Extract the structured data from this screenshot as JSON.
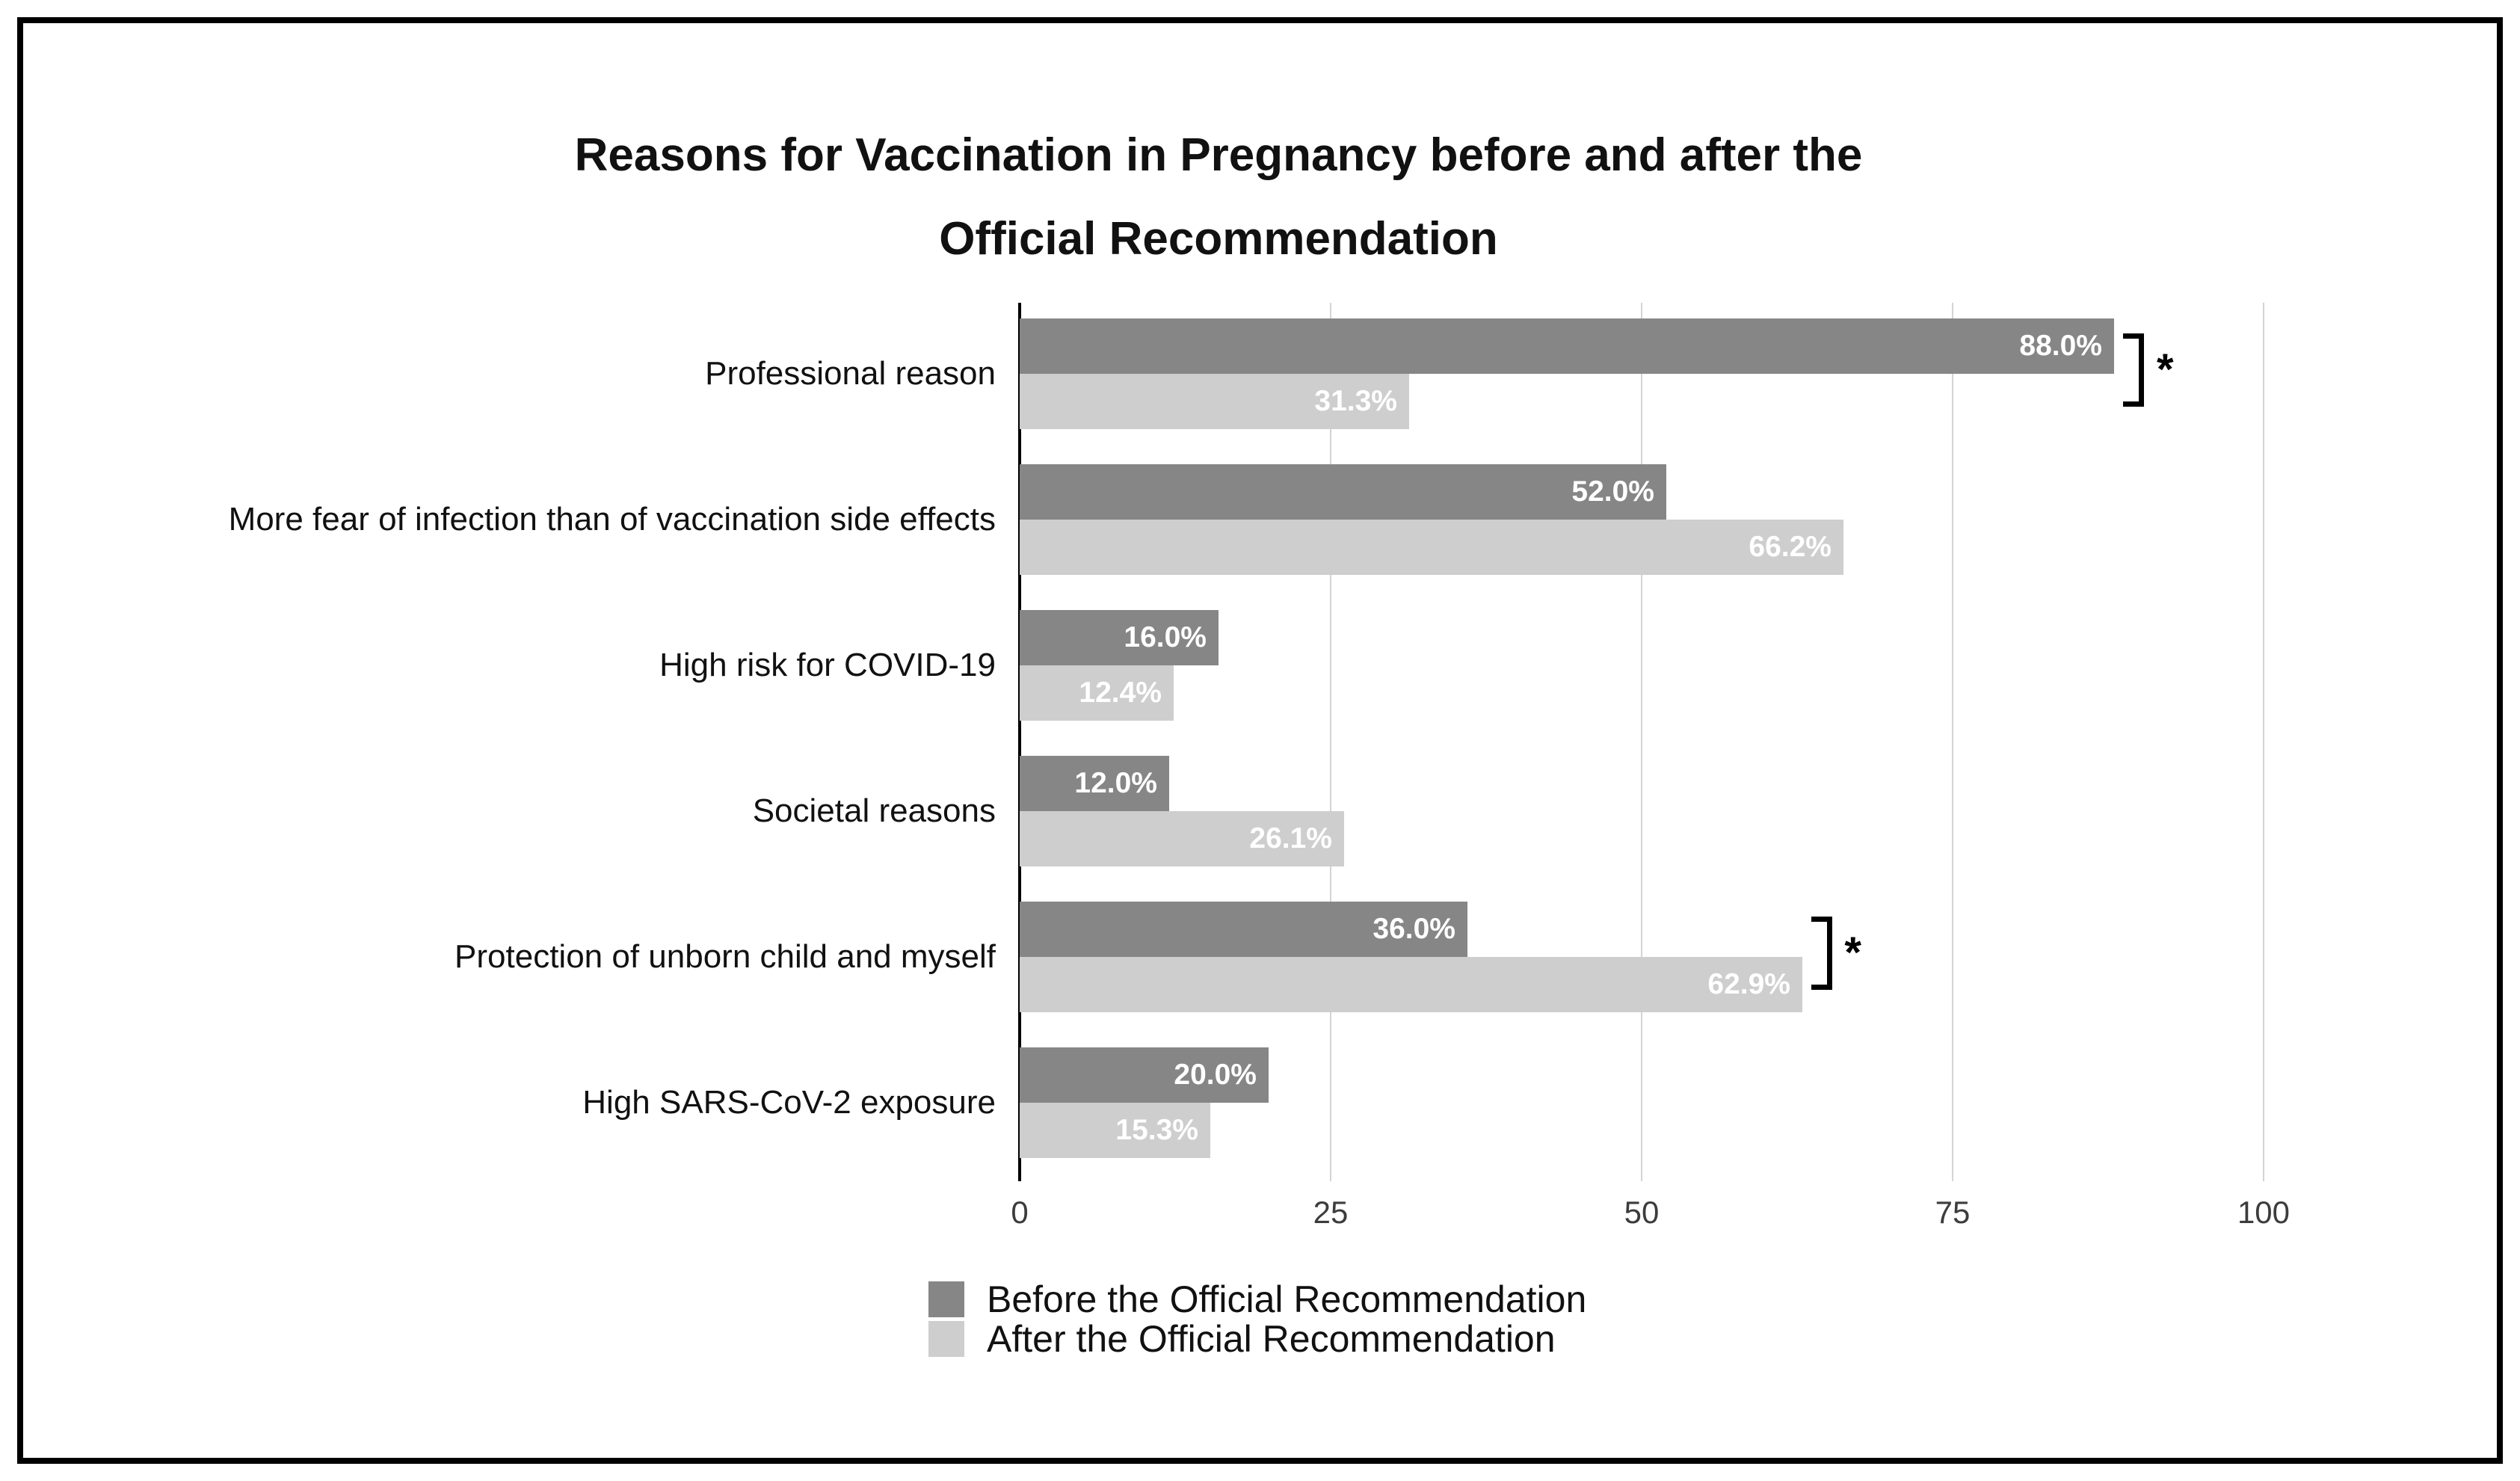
{
  "chart_data": {
    "type": "bar",
    "orientation": "horizontal",
    "title": "Reasons for Vaccination in Pregnancy before and after the Official Recommendation",
    "title_lines": [
      "Reasons for Vaccination in Pregnancy before and after the",
      "Official Recommendation"
    ],
    "categories": [
      "Professional reason",
      "More fear of infection than of vaccination side effects",
      "High risk for COVID-19",
      "Societal reasons",
      "Protection of unborn child and myself",
      "High SARS-CoV-2 exposure"
    ],
    "series": [
      {
        "name": "Before the Official Recommendation",
        "color": "#868686",
        "values": [
          88.0,
          52.0,
          16.0,
          12.0,
          36.0,
          20.0
        ],
        "value_labels": [
          "88.0%",
          "52.0%",
          "16.0%",
          "12.0%",
          "36.0%",
          "20.0%"
        ]
      },
      {
        "name": "After the Official Recommendation",
        "color": "#cecece",
        "values": [
          31.3,
          66.2,
          12.4,
          26.1,
          62.9,
          15.3
        ],
        "value_labels": [
          "31.3%",
          "66.2%",
          "12.4%",
          "26.1%",
          "62.9%",
          "15.3%"
        ]
      }
    ],
    "x_ticks": [
      "0",
      "25",
      "50",
      "75",
      "100"
    ],
    "x_tick_values": [
      0,
      25,
      50,
      75,
      100
    ],
    "xlim": [
      0,
      100
    ],
    "grid": true,
    "legend_position": "bottom-center",
    "significance_markers": [
      {
        "category_index": 0,
        "symbol": "*"
      },
      {
        "category_index": 4,
        "symbol": "*"
      }
    ],
    "colors": {
      "before": "#868686",
      "after": "#cecece",
      "gridline": "#d4d4d4",
      "axis": "#000000",
      "value_label": "#ffffff"
    }
  }
}
